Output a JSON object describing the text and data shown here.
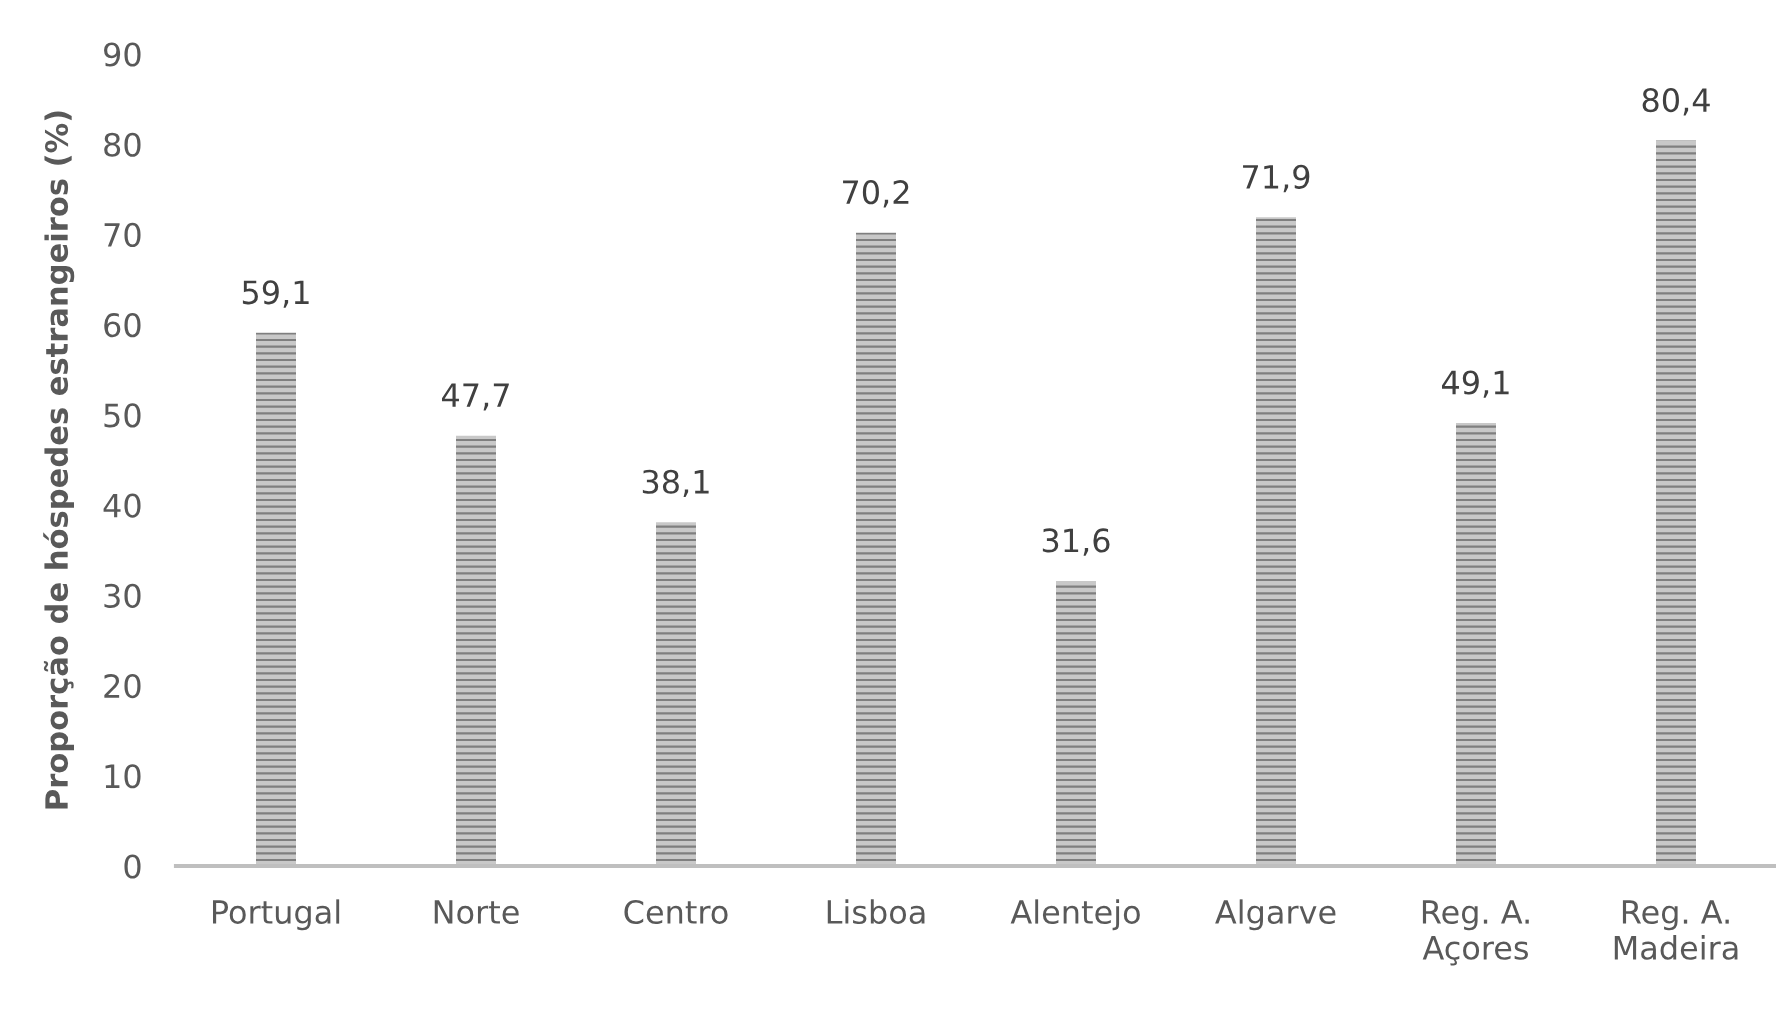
{
  "chart_data": {
    "type": "bar",
    "ylabel": "Proporção de hóspedes estrangeiros (%)",
    "categories": [
      "Portugal",
      "Norte",
      "Centro",
      "Lisboa",
      "Alentejo",
      "Algarve",
      "Reg. A.\nAçores",
      "Reg. A.\nMadeira"
    ],
    "values": [
      59.1,
      47.7,
      38.1,
      70.2,
      31.6,
      71.9,
      49.1,
      80.4
    ],
    "value_labels": [
      "59,1",
      "47,7",
      "38,1",
      "70,2",
      "31,6",
      "71,9",
      "49,1",
      "80,4"
    ],
    "color": "#7f7f7f",
    "ylim": [
      0,
      90
    ],
    "yticks": [
      0,
      10,
      20,
      30,
      40,
      50,
      60,
      70,
      80,
      90
    ],
    "grid": false,
    "legend": false
  }
}
